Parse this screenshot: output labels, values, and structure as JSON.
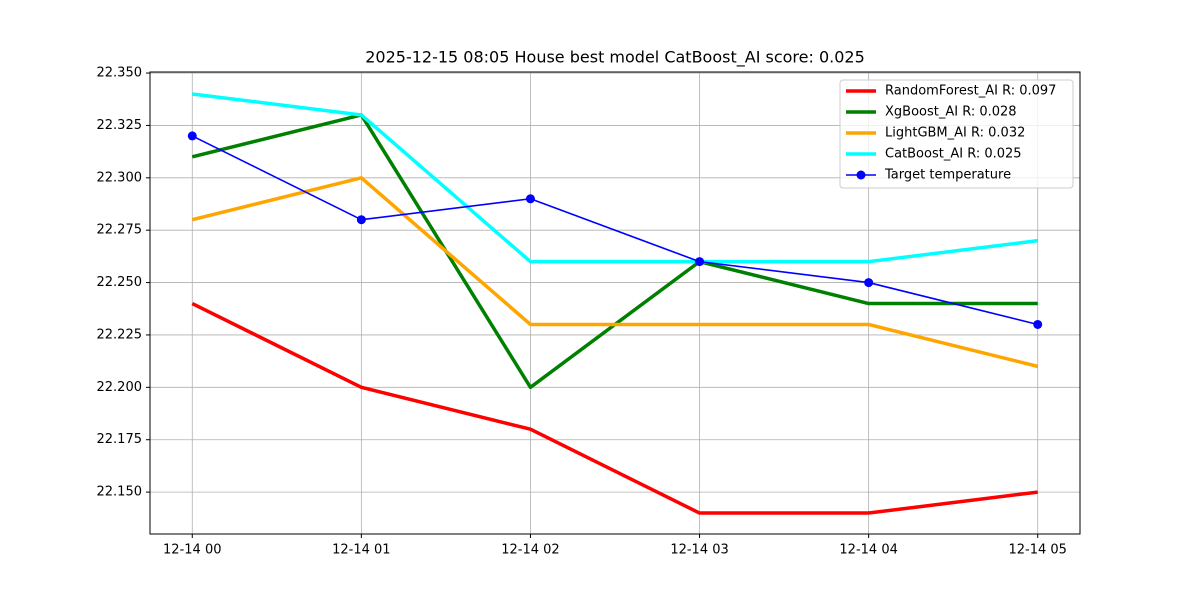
{
  "chart_data": {
    "type": "line",
    "title": "2025-12-15 08:05 House best model CatBoost_AI score: 0.025",
    "categories": [
      "12-14 00",
      "12-14 01",
      "12-14 02",
      "12-14 03",
      "12-14 04",
      "12-14 05"
    ],
    "series": [
      {
        "name": "RandomForest_AI R: 0.097",
        "color": "#ff0000",
        "width": 3.5,
        "marker": false,
        "values": [
          22.24,
          22.2,
          22.18,
          22.14,
          22.14,
          22.15
        ]
      },
      {
        "name": "XgBoost_AI R: 0.028",
        "color": "#008000",
        "width": 3.5,
        "marker": false,
        "values": [
          22.31,
          22.33,
          22.2,
          22.26,
          22.24,
          22.24
        ]
      },
      {
        "name": "LightGBM_AI R: 0.032",
        "color": "#ffa500",
        "width": 3.5,
        "marker": false,
        "values": [
          22.28,
          22.3,
          22.23,
          22.23,
          22.23,
          22.21
        ]
      },
      {
        "name": "CatBoost_AI R: 0.025",
        "color": "#00ffff",
        "width": 3.5,
        "marker": false,
        "values": [
          22.34,
          22.33,
          22.26,
          22.26,
          22.26,
          22.27
        ]
      },
      {
        "name": "Target temperature",
        "color": "#0000ff",
        "width": 1.6,
        "marker": true,
        "values": [
          22.32,
          22.28,
          22.29,
          22.26,
          22.25,
          22.23
        ]
      }
    ],
    "ylim": [
      22.13,
      22.3505
    ],
    "yticks": [
      {
        "value": 22.15,
        "label": "22.150"
      },
      {
        "value": 22.175,
        "label": "22.175"
      },
      {
        "value": 22.2,
        "label": "22.200"
      },
      {
        "value": 22.225,
        "label": "22.225"
      },
      {
        "value": 22.25,
        "label": "22.250"
      },
      {
        "value": 22.275,
        "label": "22.275"
      },
      {
        "value": 22.3,
        "label": "22.300"
      },
      {
        "value": 22.325,
        "label": "22.325"
      },
      {
        "value": 22.35,
        "label": "22.350"
      }
    ],
    "grid": true,
    "legend": "upper-right"
  }
}
